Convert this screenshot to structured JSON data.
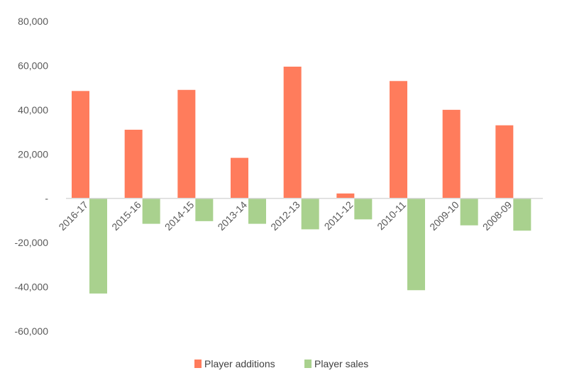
{
  "chart_data": {
    "type": "bar",
    "categories": [
      "2016-17",
      "2015-16",
      "2014-15",
      "2013-14",
      "2012-13",
      "2011-12",
      "2010-11",
      "2009-10",
      "2008-09"
    ],
    "series": [
      {
        "name": "Player additions",
        "color": "#FF7C5C",
        "values": [
          48500,
          31000,
          49000,
          18300,
          59500,
          2200,
          53000,
          40000,
          33000
        ]
      },
      {
        "name": "Player sales",
        "color": "#A9D18E",
        "values": [
          -43000,
          -11500,
          -10300,
          -11500,
          -14000,
          -9500,
          -41500,
          -12200,
          -14600
        ]
      }
    ],
    "ylim": [
      -60000,
      80000
    ],
    "yticks": [
      {
        "value": 80000,
        "label": "80,000"
      },
      {
        "value": 60000,
        "label": "60,000"
      },
      {
        "value": 40000,
        "label": "40,000"
      },
      {
        "value": 20000,
        "label": "20,000"
      },
      {
        "value": 0,
        "label": "-"
      },
      {
        "value": -20000,
        "label": "-20,000"
      },
      {
        "value": -40000,
        "label": "-40,000"
      },
      {
        "value": -60000,
        "label": "-60,000"
      }
    ],
    "grid": false,
    "legend_position": "bottom",
    "title": "",
    "xlabel": "",
    "ylabel": ""
  }
}
